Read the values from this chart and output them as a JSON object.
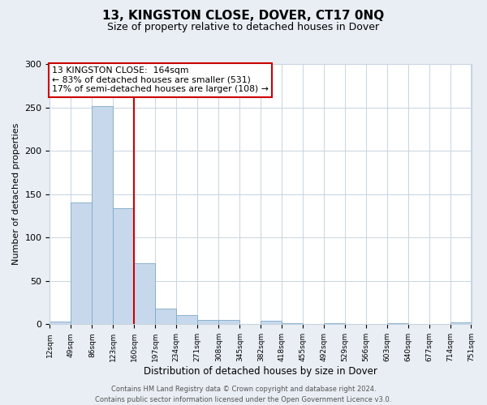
{
  "title": "13, KINGSTON CLOSE, DOVER, CT17 0NQ",
  "subtitle": "Size of property relative to detached houses in Dover",
  "xlabel": "Distribution of detached houses by size in Dover",
  "ylabel": "Number of detached properties",
  "bin_edges": [
    12,
    49,
    86,
    123,
    160,
    197,
    234,
    271,
    308,
    345,
    382,
    418,
    455,
    492,
    529,
    566,
    603,
    640,
    677,
    714,
    751
  ],
  "bin_counts": [
    3,
    140,
    251,
    134,
    70,
    18,
    11,
    5,
    5,
    0,
    4,
    1,
    0,
    1,
    0,
    0,
    1,
    0,
    0,
    2
  ],
  "bar_color": "#c8d8ec",
  "bar_edge_color": "#7aaac8",
  "property_line_x": 160,
  "property_line_color": "#cc0000",
  "annotation_title": "13 KINGSTON CLOSE:  164sqm",
  "annotation_line1": "← 83% of detached houses are smaller (531)",
  "annotation_line2": "17% of semi-detached houses are larger (108) →",
  "annotation_box_edgecolor": "#cc0000",
  "ylim": [
    0,
    300
  ],
  "yticks": [
    0,
    50,
    100,
    150,
    200,
    250,
    300
  ],
  "tick_labels": [
    "12sqm",
    "49sqm",
    "86sqm",
    "123sqm",
    "160sqm",
    "197sqm",
    "234sqm",
    "271sqm",
    "308sqm",
    "345sqm",
    "382sqm",
    "418sqm",
    "455sqm",
    "492sqm",
    "529sqm",
    "566sqm",
    "603sqm",
    "640sqm",
    "677sqm",
    "714sqm",
    "751sqm"
  ],
  "footer_line1": "Contains HM Land Registry data © Crown copyright and database right 2024.",
  "footer_line2": "Contains public sector information licensed under the Open Government Licence v3.0.",
  "background_color": "#e8eef4",
  "plot_bg_color": "#ffffff",
  "grid_color": "#c8d4e0",
  "title_fontsize": 11,
  "subtitle_fontsize": 9
}
